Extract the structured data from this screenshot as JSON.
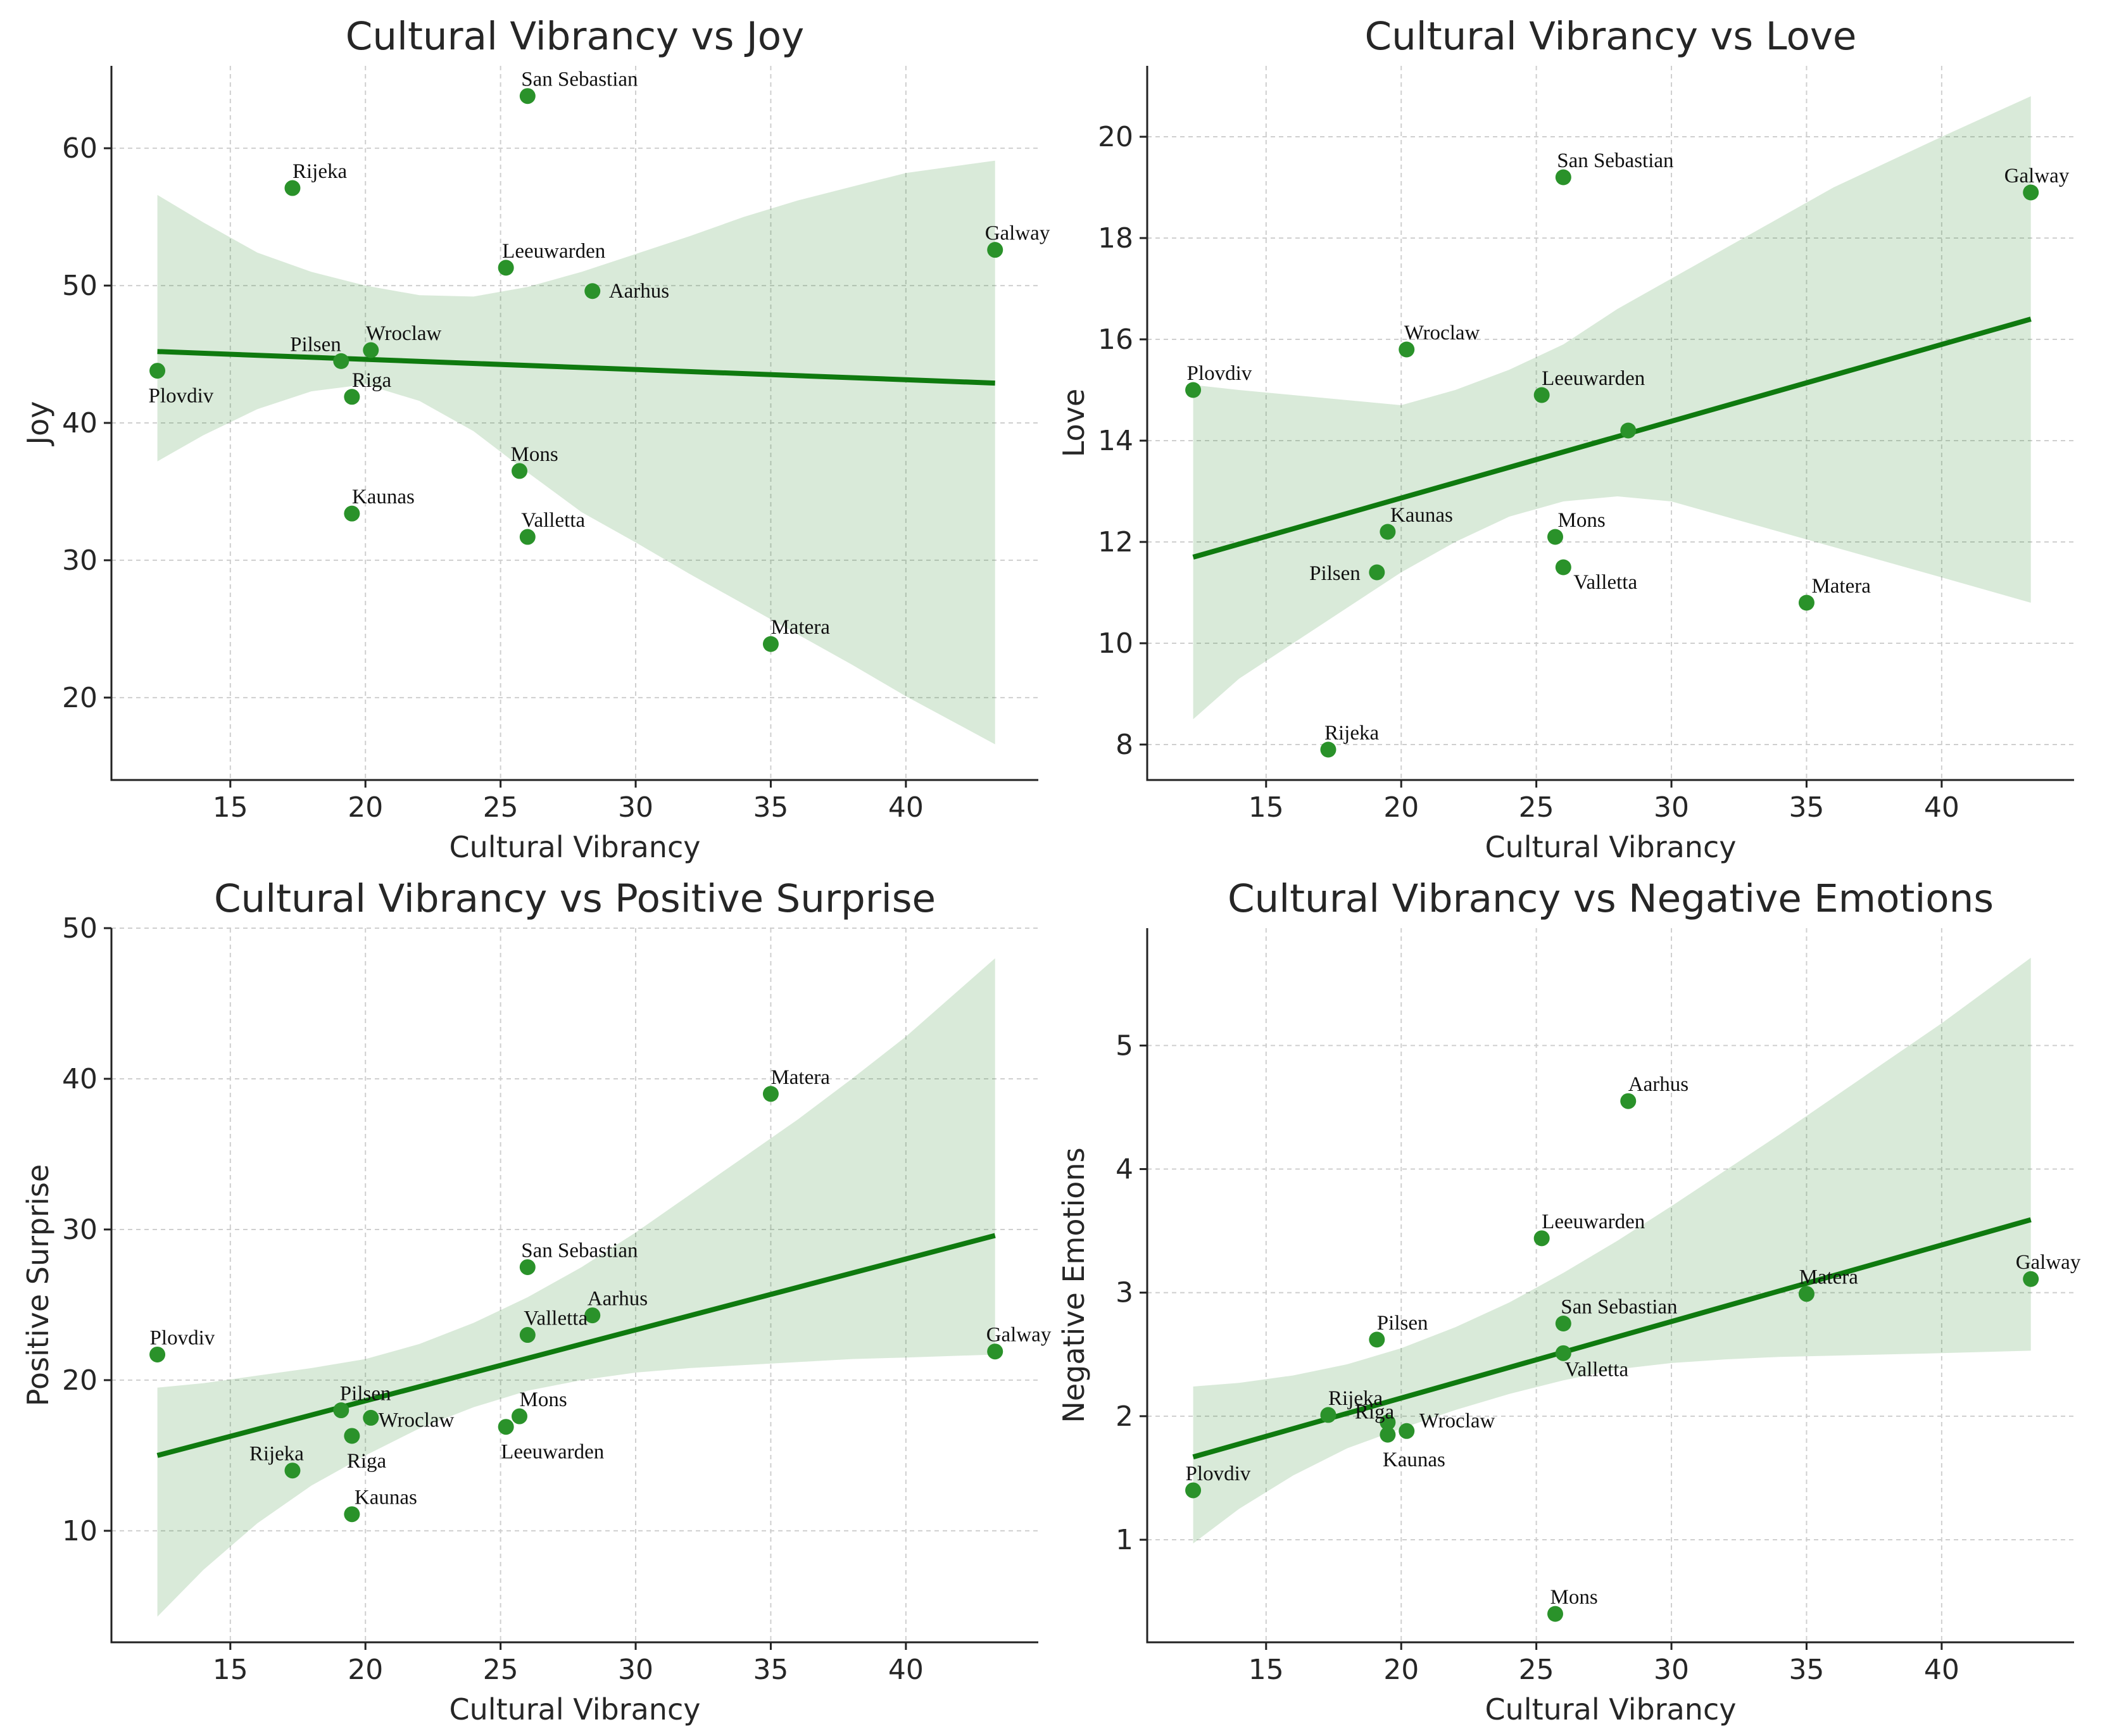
{
  "chart_data": [
    {
      "type": "scatter",
      "title": "Cultural Vibrancy vs Joy",
      "xlabel": "Cultural Vibrancy",
      "ylabel": "Joy",
      "xlim": [
        10.6,
        44.9
      ],
      "ylim": [
        14,
        66
      ],
      "xticks": [
        15,
        20,
        25,
        30,
        35,
        40
      ],
      "yticks": [
        20,
        30,
        40,
        50,
        60
      ],
      "grid": true,
      "points": [
        {
          "label": "San Sebastian",
          "x": 26.0,
          "y": 63.8
        },
        {
          "label": "Rijeka",
          "x": 17.3,
          "y": 57.1
        },
        {
          "label": "Galway",
          "x": 43.3,
          "y": 52.6
        },
        {
          "label": "Leeuwarden",
          "x": 25.2,
          "y": 51.3
        },
        {
          "label": "Aarhus",
          "x": 28.4,
          "y": 49.6
        },
        {
          "label": "Wroclaw",
          "x": 20.2,
          "y": 45.3
        },
        {
          "label": "Pilsen",
          "x": 19.1,
          "y": 44.5
        },
        {
          "label": "Plovdiv",
          "x": 12.3,
          "y": 43.8
        },
        {
          "label": "Riga",
          "x": 19.5,
          "y": 41.9
        },
        {
          "label": "Mons",
          "x": 25.7,
          "y": 36.5
        },
        {
          "label": "Kaunas",
          "x": 19.5,
          "y": 33.4
        },
        {
          "label": "Valletta",
          "x": 26.0,
          "y": 31.7
        },
        {
          "label": "Matera",
          "x": 35.0,
          "y": 23.9
        }
      ],
      "regression": {
        "x": [
          12.3,
          43.3
        ],
        "y": [
          45.2,
          42.9
        ]
      },
      "ci_band": {
        "x": [
          12.3,
          14,
          16,
          18,
          20,
          22,
          24,
          26,
          28,
          30,
          32,
          34,
          36,
          38,
          40,
          43.3
        ],
        "lower": [
          37.2,
          39.1,
          41.0,
          42.3,
          42.8,
          41.6,
          39.4,
          36.4,
          33.5,
          31.3,
          29.0,
          26.8,
          24.6,
          22.4,
          20.1,
          16.6
        ],
        "upper": [
          56.6,
          54.6,
          52.4,
          51.0,
          50.0,
          49.3,
          49.2,
          49.9,
          51.0,
          52.3,
          53.6,
          55.0,
          56.2,
          57.2,
          58.2,
          59.1
        ]
      }
    },
    {
      "type": "scatter",
      "title": "Cultural Vibrancy vs Love",
      "xlabel": "Cultural Vibrancy",
      "ylabel": "Love",
      "xlim": [
        10.6,
        44.9
      ],
      "ylim": [
        7.3,
        21.4
      ],
      "xticks": [
        15,
        20,
        25,
        30,
        35,
        40
      ],
      "yticks": [
        8,
        10,
        12,
        14,
        16,
        18,
        20
      ],
      "grid": true,
      "points": [
        {
          "label": "San Sebastian",
          "x": 26.0,
          "y": 19.2
        },
        {
          "label": "Galway",
          "x": 43.3,
          "y": 18.9
        },
        {
          "label": "Wroclaw",
          "x": 20.2,
          "y": 15.8
        },
        {
          "label": "Plovdiv",
          "x": 12.3,
          "y": 15.0
        },
        {
          "label": "Leeuwarden",
          "x": 25.2,
          "y": 14.9
        },
        {
          "label": "",
          "x": 28.4,
          "y": 14.2
        },
        {
          "label": "Kaunas",
          "x": 19.5,
          "y": 12.2
        },
        {
          "label": "Mons",
          "x": 25.7,
          "y": 12.1
        },
        {
          "label": "Pilsen",
          "x": 19.1,
          "y": 11.4
        },
        {
          "label": "Valletta",
          "x": 26.0,
          "y": 11.5
        },
        {
          "label": "Matera",
          "x": 35.0,
          "y": 10.8
        },
        {
          "label": "Rijeka",
          "x": 17.3,
          "y": 7.9
        }
      ],
      "regression": {
        "x": [
          12.3,
          43.3
        ],
        "y": [
          11.7,
          16.4
        ]
      },
      "ci_band": {
        "x": [
          12.3,
          14,
          16,
          18,
          20,
          22,
          24,
          26,
          28,
          30,
          32,
          34,
          36,
          38,
          40,
          43.3
        ],
        "lower": [
          8.5,
          9.3,
          10.0,
          10.7,
          11.4,
          12.0,
          12.5,
          12.8,
          12.9,
          12.8,
          12.5,
          12.2,
          11.9,
          11.6,
          11.3,
          10.8
        ],
        "upper": [
          15.1,
          15.0,
          14.9,
          14.8,
          14.7,
          15.0,
          15.4,
          15.9,
          16.6,
          17.2,
          17.8,
          18.4,
          19.0,
          19.5,
          20.0,
          20.8
        ]
      }
    },
    {
      "type": "scatter",
      "title": "Cultural Vibrancy vs Positive Surprise",
      "xlabel": "Cultural Vibrancy",
      "ylabel": "Positive Surprise",
      "xlim": [
        10.6,
        44.9
      ],
      "ylim": [
        2.6,
        50
      ],
      "xticks": [
        15,
        20,
        25,
        30,
        35,
        40
      ],
      "yticks": [
        10,
        20,
        30,
        40,
        50
      ],
      "grid": true,
      "points": [
        {
          "label": "Matera",
          "x": 35.0,
          "y": 39.0
        },
        {
          "label": "San Sebastian",
          "x": 26.0,
          "y": 27.5
        },
        {
          "label": "Aarhus",
          "x": 28.4,
          "y": 24.3
        },
        {
          "label": "Valletta",
          "x": 26.0,
          "y": 23.0
        },
        {
          "label": "Galway",
          "x": 43.3,
          "y": 21.9
        },
        {
          "label": "Plovdiv",
          "x": 12.3,
          "y": 21.7
        },
        {
          "label": "Pilsen",
          "x": 19.1,
          "y": 18.0
        },
        {
          "label": "Wroclaw",
          "x": 20.2,
          "y": 17.5
        },
        {
          "label": "Mons",
          "x": 25.7,
          "y": 17.6
        },
        {
          "label": "Leeuwarden",
          "x": 25.2,
          "y": 16.9
        },
        {
          "label": "Riga",
          "x": 19.5,
          "y": 16.3
        },
        {
          "label": "Rijeka",
          "x": 17.3,
          "y": 14.0
        },
        {
          "label": "Kaunas",
          "x": 19.5,
          "y": 11.1
        }
      ],
      "regression": {
        "x": [
          12.3,
          43.3
        ],
        "y": [
          15.0,
          29.6
        ]
      },
      "ci_band": {
        "x": [
          12.3,
          14,
          16,
          18,
          20,
          22,
          24,
          26,
          28,
          30,
          32,
          34,
          36,
          38,
          40,
          43.3
        ],
        "lower": [
          4.3,
          7.4,
          10.5,
          13.0,
          15.0,
          16.8,
          18.2,
          19.3,
          20.0,
          20.5,
          20.8,
          21.0,
          21.2,
          21.4,
          21.5,
          21.7
        ],
        "upper": [
          19.5,
          19.8,
          20.3,
          20.8,
          21.4,
          22.4,
          23.8,
          25.5,
          27.5,
          29.8,
          32.3,
          34.8,
          37.3,
          40.0,
          42.8,
          48.0
        ]
      }
    },
    {
      "type": "scatter",
      "title": "Cultural Vibrancy vs Negative Emotions",
      "xlabel": "Cultural Vibrancy",
      "ylabel": "Negative Emotions",
      "xlim": [
        10.6,
        44.9
      ],
      "ylim": [
        0.17,
        5.95
      ],
      "xticks": [
        15,
        20,
        25,
        30,
        35,
        40
      ],
      "yticks": [
        1,
        2,
        3,
        4,
        5
      ],
      "grid": true,
      "points": [
        {
          "label": "Aarhus",
          "x": 28.4,
          "y": 4.55
        },
        {
          "label": "Leeuwarden",
          "x": 25.2,
          "y": 3.44
        },
        {
          "label": "Galway",
          "x": 43.3,
          "y": 3.11
        },
        {
          "label": "Matera",
          "x": 35.0,
          "y": 2.99
        },
        {
          "label": "San Sebastian",
          "x": 26.0,
          "y": 2.75
        },
        {
          "label": "Pilsen",
          "x": 19.1,
          "y": 2.62
        },
        {
          "label": "Valletta",
          "x": 26.0,
          "y": 2.51
        },
        {
          "label": "Rijeka",
          "x": 17.3,
          "y": 2.01
        },
        {
          "label": "Riga",
          "x": 19.5,
          "y": 1.95
        },
        {
          "label": "Wroclaw",
          "x": 20.2,
          "y": 1.88
        },
        {
          "label": "Kaunas",
          "x": 19.5,
          "y": 1.85
        },
        {
          "label": "Plovdiv",
          "x": 12.3,
          "y": 1.4
        },
        {
          "label": "Mons",
          "x": 25.7,
          "y": 0.4
        }
      ],
      "regression": {
        "x": [
          12.3,
          43.3
        ],
        "y": [
          1.67,
          3.59
        ]
      },
      "ci_band": {
        "x": [
          12.3,
          14,
          16,
          18,
          20,
          22,
          24,
          26,
          28,
          30,
          32,
          34,
          36,
          38,
          40,
          43.3
        ],
        "lower": [
          0.97,
          1.25,
          1.52,
          1.74,
          1.9,
          2.05,
          2.18,
          2.29,
          2.38,
          2.43,
          2.46,
          2.48,
          2.49,
          2.5,
          2.51,
          2.53
        ],
        "upper": [
          2.24,
          2.27,
          2.33,
          2.42,
          2.55,
          2.72,
          2.92,
          3.16,
          3.42,
          3.7,
          3.99,
          4.28,
          4.58,
          4.88,
          5.18,
          5.71
        ]
      }
    }
  ]
}
